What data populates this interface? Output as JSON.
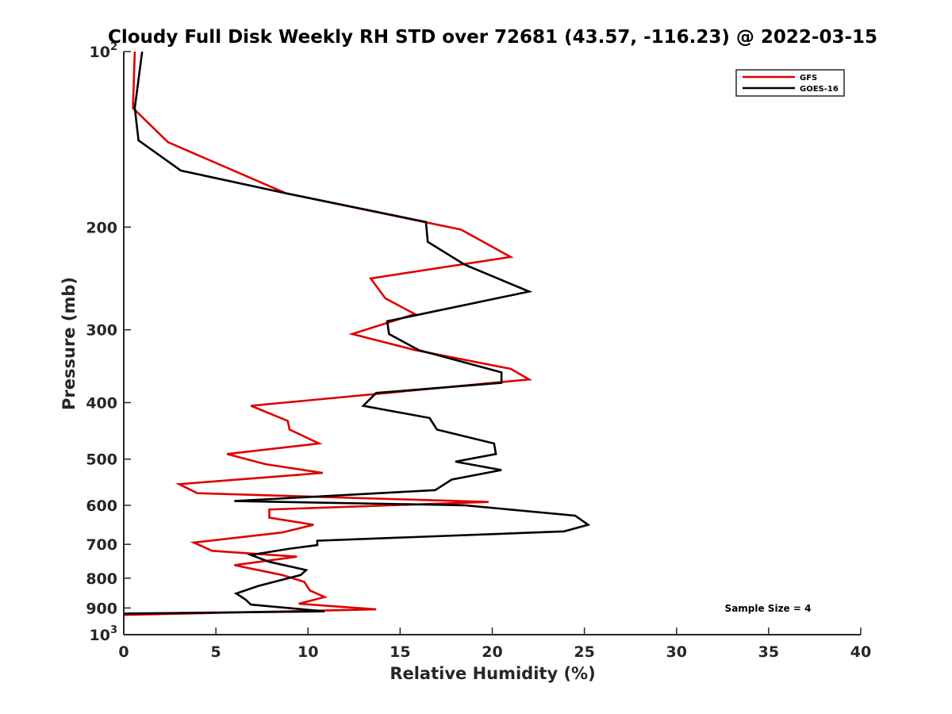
{
  "chart_data": {
    "type": "line",
    "title": "Cloudy Full Disk Weekly RH STD over 72681 (43.57, -116.23) @ 2022-03-15",
    "xlabel": "Relative Humidity (%)",
    "ylabel": "Pressure (mb)",
    "xlim": [
      0,
      40
    ],
    "ylim": [
      100,
      1000
    ],
    "y_scale": "log",
    "y_reversed": true,
    "x_ticks": [
      0,
      5,
      10,
      15,
      20,
      25,
      30,
      35,
      40
    ],
    "x_tick_labels": [
      "0",
      "5",
      "10",
      "15",
      "20",
      "25",
      "30",
      "35",
      "40"
    ],
    "y_ticks": [
      100,
      200,
      300,
      400,
      500,
      600,
      700,
      800,
      900,
      1000
    ],
    "y_tick_labels": [
      {
        "base": "10",
        "exp": "2"
      },
      {
        "base": "200",
        "exp": ""
      },
      {
        "base": "300",
        "exp": ""
      },
      {
        "base": "400",
        "exp": ""
      },
      {
        "base": "500",
        "exp": ""
      },
      {
        "base": "600",
        "exp": ""
      },
      {
        "base": "700",
        "exp": ""
      },
      {
        "base": "800",
        "exp": ""
      },
      {
        "base": "900",
        "exp": ""
      },
      {
        "base": "10",
        "exp": "3"
      }
    ],
    "grid": false,
    "legend_position": "top-right",
    "annotation": "Sample Size = 4",
    "series": [
      {
        "name": "GFS",
        "color": "#dd0000",
        "points": [
          [
            0.6,
            100
          ],
          [
            0.5,
            125
          ],
          [
            2.4,
            143
          ],
          [
            8.8,
            175
          ],
          [
            18.3,
            202
          ],
          [
            21.0,
            225
          ],
          [
            13.4,
            245
          ],
          [
            14.2,
            265
          ],
          [
            15.8,
            282
          ],
          [
            12.4,
            305
          ],
          [
            15.8,
            325
          ],
          [
            21.0,
            350
          ],
          [
            22.0,
            365
          ],
          [
            6.9,
            405
          ],
          [
            8.9,
            430
          ],
          [
            9.0,
            445
          ],
          [
            10.6,
            470
          ],
          [
            5.6,
            490
          ],
          [
            7.7,
            510
          ],
          [
            10.8,
            528
          ],
          [
            3.0,
            552
          ],
          [
            4.0,
            572
          ],
          [
            19.8,
            592
          ],
          [
            7.9,
            610
          ],
          [
            7.9,
            630
          ],
          [
            10.3,
            648
          ],
          [
            8.6,
            668
          ],
          [
            3.8,
            695
          ],
          [
            4.8,
            718
          ],
          [
            9.4,
            735
          ],
          [
            6.0,
            760
          ],
          [
            8.6,
            790
          ],
          [
            9.8,
            812
          ],
          [
            10.1,
            840
          ],
          [
            10.9,
            862
          ],
          [
            9.5,
            885
          ],
          [
            13.7,
            905
          ],
          [
            0.0,
            925
          ]
        ]
      },
      {
        "name": "GOES-16",
        "color": "#000000",
        "points": [
          [
            1.0,
            100
          ],
          [
            0.6,
            125
          ],
          [
            0.8,
            142
          ],
          [
            3.1,
            160
          ],
          [
            8.8,
            175
          ],
          [
            16.4,
            196
          ],
          [
            16.5,
            212
          ],
          [
            18.5,
            232
          ],
          [
            22.0,
            258
          ],
          [
            14.3,
            290
          ],
          [
            14.4,
            305
          ],
          [
            16.0,
            325
          ],
          [
            20.5,
            355
          ],
          [
            20.5,
            370
          ],
          [
            13.7,
            385
          ],
          [
            13.0,
            405
          ],
          [
            16.6,
            425
          ],
          [
            17.0,
            445
          ],
          [
            20.1,
            470
          ],
          [
            20.2,
            490
          ],
          [
            18.0,
            505
          ],
          [
            20.5,
            522
          ],
          [
            17.8,
            542
          ],
          [
            16.9,
            565
          ],
          [
            6.0,
            590
          ],
          [
            18.5,
            600
          ],
          [
            24.5,
            625
          ],
          [
            25.2,
            648
          ],
          [
            23.9,
            665
          ],
          [
            10.5,
            690
          ],
          [
            10.5,
            702
          ],
          [
            9.0,
            712
          ],
          [
            6.9,
            730
          ],
          [
            7.9,
            750
          ],
          [
            9.9,
            775
          ],
          [
            9.6,
            790
          ],
          [
            7.3,
            825
          ],
          [
            6.1,
            850
          ],
          [
            6.6,
            870
          ],
          [
            6.9,
            888
          ],
          [
            10.9,
            912
          ],
          [
            0.0,
            920
          ]
        ]
      }
    ]
  }
}
